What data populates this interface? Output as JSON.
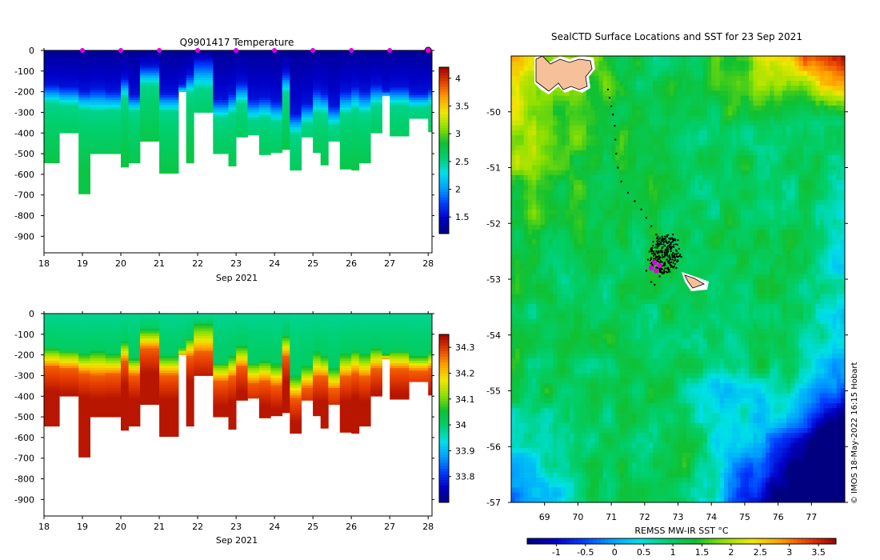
{
  "colors": {
    "jet": [
      "#000080",
      "#0000c8",
      "#0040ff",
      "#00a0ff",
      "#00e0e8",
      "#00d070",
      "#10c030",
      "#90e000",
      "#f0e800",
      "#ffa000",
      "#e84000",
      "#a00000"
    ],
    "marker": "#e000e0",
    "land": "#f5c09a"
  },
  "credit": "© IMOS 18-May-2022 16:15 Hobart",
  "chart_data": [
    {
      "id": "temperature",
      "type": "heatmap",
      "title": "Q9901417  Temperature",
      "xlabel": "Sep 2021",
      "xlim": [
        18,
        28.1
      ],
      "ylim": [
        -980,
        0
      ],
      "xticks": [
        18,
        19,
        20,
        21,
        22,
        23,
        24,
        25,
        26,
        27,
        28
      ],
      "yticks": [
        0,
        -100,
        -200,
        -300,
        -400,
        -500,
        -600,
        -700,
        -800,
        -900
      ],
      "clim": [
        1.2,
        4.2
      ],
      "colorbar_ticks": [
        4,
        3.5,
        3,
        2.5,
        2,
        1.5
      ],
      "markers_x": [
        19,
        20,
        21,
        22,
        23,
        24,
        25,
        26,
        27,
        28
      ],
      "profiles": [
        {
          "t0": 18.0,
          "t1": 18.4,
          "depth": 545,
          "t_top": 160,
          "t_deep": 250
        },
        {
          "t0": 18.4,
          "t1": 18.9,
          "depth": 400,
          "t_top": 170,
          "t_deep": 260
        },
        {
          "t0": 18.9,
          "t1": 19.2,
          "depth": 695,
          "t_top": 190,
          "t_deep": 280
        },
        {
          "t0": 19.2,
          "t1": 19.6,
          "depth": 500,
          "t_top": 175,
          "t_deep": 290
        },
        {
          "t0": 19.6,
          "t1": 20.0,
          "depth": 500,
          "t_top": 190,
          "t_deep": 285
        },
        {
          "t0": 20.0,
          "t1": 20.2,
          "depth": 565,
          "t_top": 130,
          "t_deep": 220
        },
        {
          "t0": 20.2,
          "t1": 20.5,
          "depth": 545,
          "t_top": 210,
          "t_deep": 290
        },
        {
          "t0": 20.5,
          "t1": 21.0,
          "depth": 440,
          "t_top": 70,
          "t_deep": 160
        },
        {
          "t0": 21.0,
          "t1": 21.5,
          "depth": 595,
          "t_top": 200,
          "t_deep": 290
        },
        {
          "t0": 21.5,
          "t1": 21.7,
          "depth": 200,
          "t_top": 160,
          "t_deep": 200
        },
        {
          "t0": 21.7,
          "t1": 21.9,
          "depth": 545,
          "t_top": 110,
          "t_deep": 200
        },
        {
          "t0": 21.9,
          "t1": 22.4,
          "depth": 300,
          "t_top": 40,
          "t_deep": 180
        },
        {
          "t0": 22.4,
          "t1": 22.8,
          "depth": 500,
          "t_top": 230,
          "t_deep": 320
        },
        {
          "t0": 22.8,
          "t1": 23.0,
          "depth": 560,
          "t_top": 200,
          "t_deep": 300
        },
        {
          "t0": 23.0,
          "t1": 23.3,
          "depth": 420,
          "t_top": 150,
          "t_deep": 250
        },
        {
          "t0": 23.3,
          "t1": 23.6,
          "depth": 410,
          "t_top": 230,
          "t_deep": 330
        },
        {
          "t0": 23.6,
          "t1": 23.9,
          "depth": 505,
          "t_top": 220,
          "t_deep": 320
        },
        {
          "t0": 23.9,
          "t1": 24.2,
          "depth": 495,
          "t_top": 240,
          "t_deep": 340
        },
        {
          "t0": 24.2,
          "t1": 24.4,
          "depth": 480,
          "t_top": 100,
          "t_deep": 200
        },
        {
          "t0": 24.4,
          "t1": 24.7,
          "depth": 580,
          "t_top": 300,
          "t_deep": 400
        },
        {
          "t0": 24.7,
          "t1": 25.0,
          "depth": 420,
          "t_top": 250,
          "t_deep": 350
        },
        {
          "t0": 25.0,
          "t1": 25.2,
          "depth": 495,
          "t_top": 180,
          "t_deep": 300
        },
        {
          "t0": 25.2,
          "t1": 25.4,
          "depth": 555,
          "t_top": 200,
          "t_deep": 300
        },
        {
          "t0": 25.4,
          "t1": 25.7,
          "depth": 440,
          "t_top": 260,
          "t_deep": 360
        },
        {
          "t0": 25.7,
          "t1": 26.0,
          "depth": 575,
          "t_top": 190,
          "t_deep": 300
        },
        {
          "t0": 26.0,
          "t1": 26.2,
          "depth": 580,
          "t_top": 170,
          "t_deep": 280
        },
        {
          "t0": 26.2,
          "t1": 26.5,
          "depth": 545,
          "t_top": 190,
          "t_deep": 300
        },
        {
          "t0": 26.5,
          "t1": 26.8,
          "depth": 400,
          "t_top": 160,
          "t_deep": 260
        },
        {
          "t0": 26.8,
          "t1": 27.0,
          "depth": 220,
          "t_top": 190,
          "t_deep": 220
        },
        {
          "t0": 27.0,
          "t1": 27.5,
          "depth": 415,
          "t_top": 170,
          "t_deep": 260
        },
        {
          "t0": 27.5,
          "t1": 28.0,
          "depth": 330,
          "t_top": 200,
          "t_deep": 270
        },
        {
          "t0": 28.0,
          "t1": 28.1,
          "depth": 395,
          "t_top": 180,
          "t_deep": 260
        }
      ]
    },
    {
      "id": "salinity",
      "type": "heatmap",
      "title": "",
      "xlabel": "Sep 2021",
      "xlim": [
        18,
        28.1
      ],
      "ylim": [
        -980,
        0
      ],
      "xticks": [
        18,
        19,
        20,
        21,
        22,
        23,
        24,
        25,
        26,
        27,
        28
      ],
      "yticks": [
        0,
        -100,
        -200,
        -300,
        -400,
        -500,
        -600,
        -700,
        -800,
        -900
      ],
      "clim": [
        33.7,
        34.35
      ],
      "colorbar_ticks": [
        34.3,
        34.2,
        34.1,
        34,
        33.9,
        33.8
      ],
      "surface_value": 34.0,
      "deep_value": 34.32
    },
    {
      "id": "sst-map",
      "type": "heatmap",
      "title": "SealCTD Surface Locations and SST for 23 Sep 2021",
      "xlim": [
        68,
        78
      ],
      "ylim": [
        -57,
        -49
      ],
      "xticks": [
        69,
        70,
        71,
        72,
        73,
        74,
        75,
        76,
        77
      ],
      "yticks": [
        -50,
        -51,
        -52,
        -53,
        -54,
        -55,
        -56,
        -57
      ],
      "colorbar_label": "REMSS MW-IR SST °C",
      "colorbar_ticks": [
        -1,
        -0.5,
        0,
        0.5,
        1,
        1.5,
        2,
        2.5,
        3,
        3.5
      ],
      "clim": [
        -1.5,
        3.8
      ],
      "track_points": [
        [
          70.9,
          -49.6
        ],
        [
          70.95,
          -49.75
        ],
        [
          71.0,
          -49.9
        ],
        [
          71.05,
          -50.05
        ],
        [
          71.1,
          -50.25
        ],
        [
          71.12,
          -50.5
        ],
        [
          71.15,
          -50.75
        ],
        [
          71.2,
          -51.0
        ],
        [
          71.3,
          -51.25
        ],
        [
          71.5,
          -51.45
        ],
        [
          71.7,
          -51.6
        ],
        [
          71.9,
          -51.75
        ],
        [
          72.05,
          -51.9
        ],
        [
          72.2,
          -52.05
        ],
        [
          72.35,
          -52.2
        ],
        [
          72.5,
          -52.3
        ],
        [
          72.6,
          -52.4
        ],
        [
          72.5,
          -52.5
        ],
        [
          72.4,
          -52.6
        ],
        [
          72.3,
          -52.7
        ],
        [
          72.7,
          -52.35
        ],
        [
          72.8,
          -52.45
        ],
        [
          72.9,
          -52.55
        ],
        [
          72.2,
          -52.45
        ],
        [
          72.1,
          -52.65
        ],
        [
          72.45,
          -52.95
        ],
        [
          72.6,
          -52.75
        ],
        [
          72.75,
          -52.6
        ],
        [
          73.0,
          -52.3
        ],
        [
          72.95,
          -52.8
        ],
        [
          72.3,
          -53.1
        ],
        [
          72.2,
          -53.05
        ],
        [
          72.05,
          -52.85
        ],
        [
          72.85,
          -52.2
        ],
        [
          73.1,
          -52.6
        ]
      ],
      "magenta_points": [
        [
          72.3,
          -52.7
        ],
        [
          72.35,
          -52.85
        ],
        [
          72.2,
          -52.8
        ],
        [
          72.45,
          -52.75
        ]
      ]
    }
  ]
}
